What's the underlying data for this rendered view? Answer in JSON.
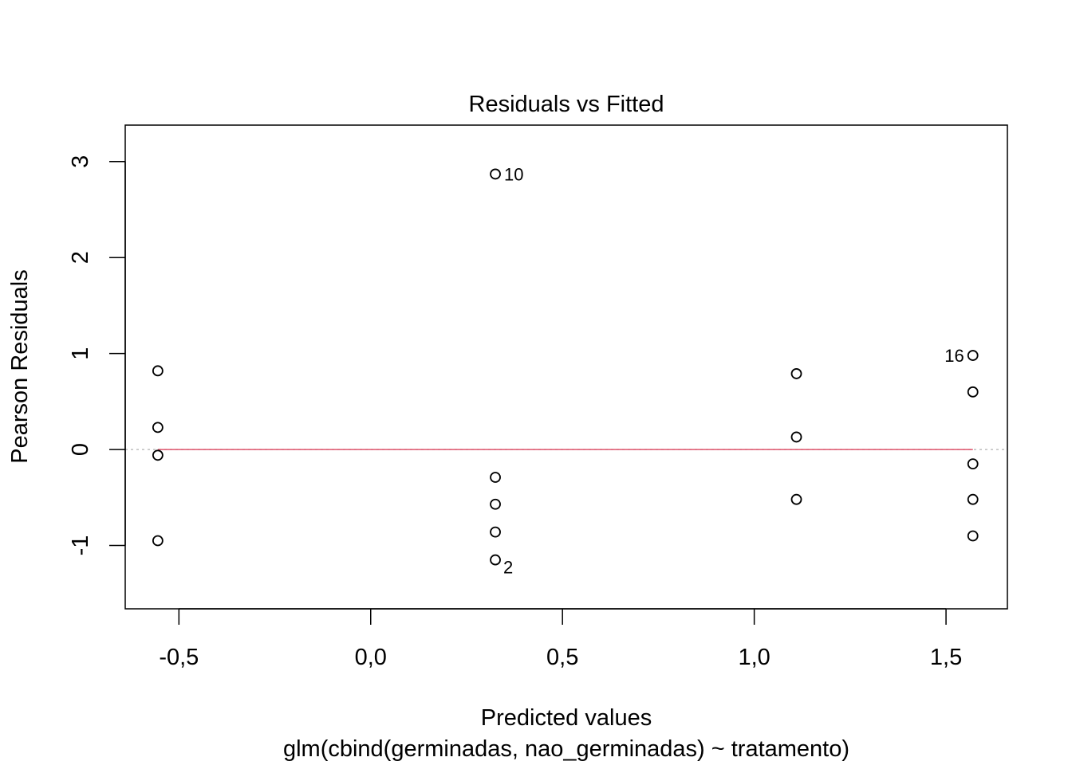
{
  "chart_data": {
    "type": "scatter",
    "title": "Residuals vs Fitted",
    "xlabel": "Predicted values",
    "sublabel": "glm(cbind(germinadas, nao_germinadas) ~ tratamento)",
    "ylabel": "Pearson Residuals",
    "xlim": [
      -0.64,
      1.66
    ],
    "ylim": [
      -1.66,
      3.38
    ],
    "x_ticks": [
      -0.5,
      0.0,
      0.5,
      1.0,
      1.5
    ],
    "x_tick_labels": [
      "-0,5",
      "0,0",
      "0,5",
      "1,0",
      "1,5"
    ],
    "y_ticks": [
      -1,
      0,
      1,
      2,
      3
    ],
    "y_tick_labels": [
      "-1",
      "0",
      "1",
      "2",
      "3"
    ],
    "grid": false,
    "points": [
      {
        "x": -0.555,
        "y": 0.82
      },
      {
        "x": -0.555,
        "y": 0.23
      },
      {
        "x": -0.555,
        "y": -0.06
      },
      {
        "x": -0.555,
        "y": -0.95
      },
      {
        "x": 0.325,
        "y": 2.87,
        "label": "10"
      },
      {
        "x": 0.325,
        "y": -0.29
      },
      {
        "x": 0.325,
        "y": -0.57
      },
      {
        "x": 0.325,
        "y": -0.86
      },
      {
        "x": 0.325,
        "y": -1.15,
        "label": "2"
      },
      {
        "x": 1.11,
        "y": 0.79
      },
      {
        "x": 1.11,
        "y": 0.13
      },
      {
        "x": 1.11,
        "y": -0.52
      },
      {
        "x": 1.57,
        "y": 0.98,
        "label": "16"
      },
      {
        "x": 1.57,
        "y": 0.6
      },
      {
        "x": 1.57,
        "y": -0.15
      },
      {
        "x": 1.57,
        "y": -0.52
      },
      {
        "x": 1.57,
        "y": -0.9
      }
    ],
    "zero_line": {
      "y": 0,
      "color": "#bebebe"
    },
    "smooth_line": {
      "y": 0,
      "color": "#df536b"
    }
  }
}
